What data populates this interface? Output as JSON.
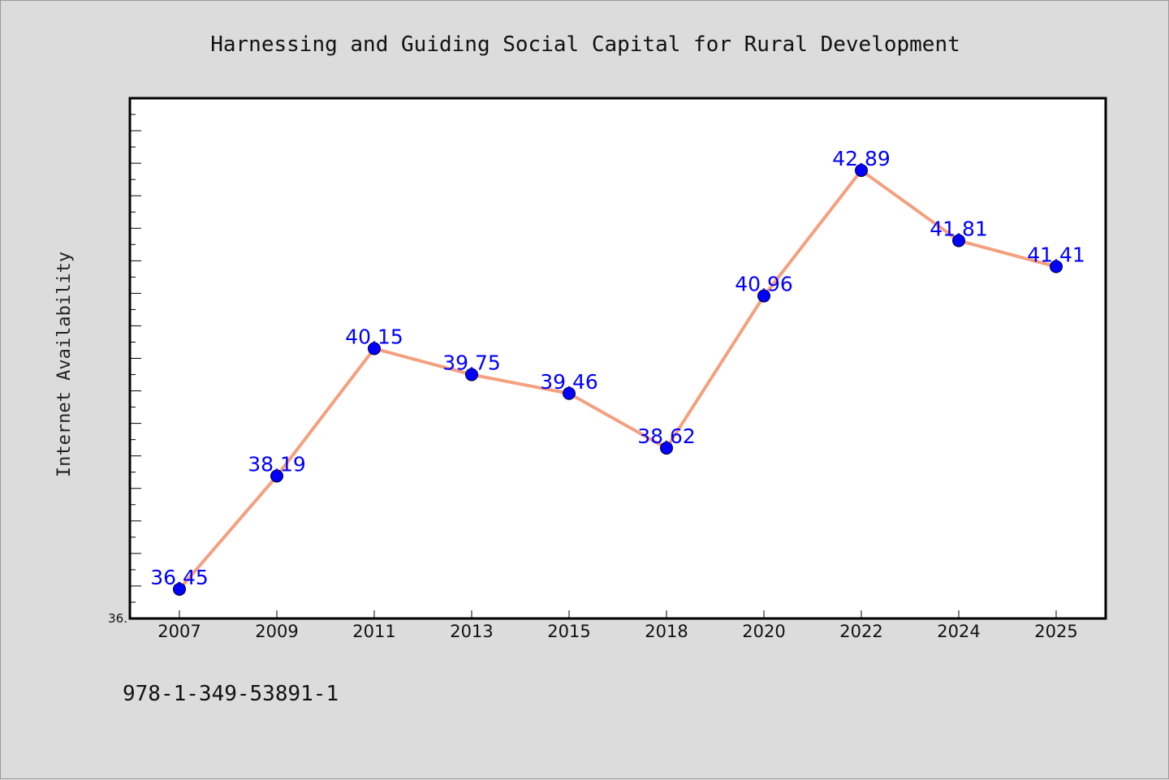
{
  "chart_data": {
    "type": "line",
    "title": "Harnessing and Guiding Social Capital for Rural Development",
    "ylabel": "Internet Availability",
    "xlabel": "",
    "categories": [
      "2007",
      "2009",
      "2011",
      "2013",
      "2015",
      "2018",
      "2020",
      "2022",
      "2024",
      "2025"
    ],
    "series": [
      {
        "values": [
          36.45,
          38.19,
          40.15,
          39.75,
          39.46,
          38.62,
          40.96,
          42.89,
          41.81,
          41.41
        ],
        "data_labels": [
          "36.45",
          "38.19",
          "40.15",
          "39.75",
          "39.46",
          "38.62",
          "40.96",
          "42.89",
          "41.81",
          "41.41"
        ]
      }
    ],
    "ylim": [
      36.0,
      44.0
    ],
    "ytick_labels": [
      "36."
    ],
    "grid": false,
    "line_color": "#f4a07e",
    "marker_color": "#0000ff",
    "label_color": "#0000ff"
  },
  "footnote": "978-1-349-53891-1"
}
